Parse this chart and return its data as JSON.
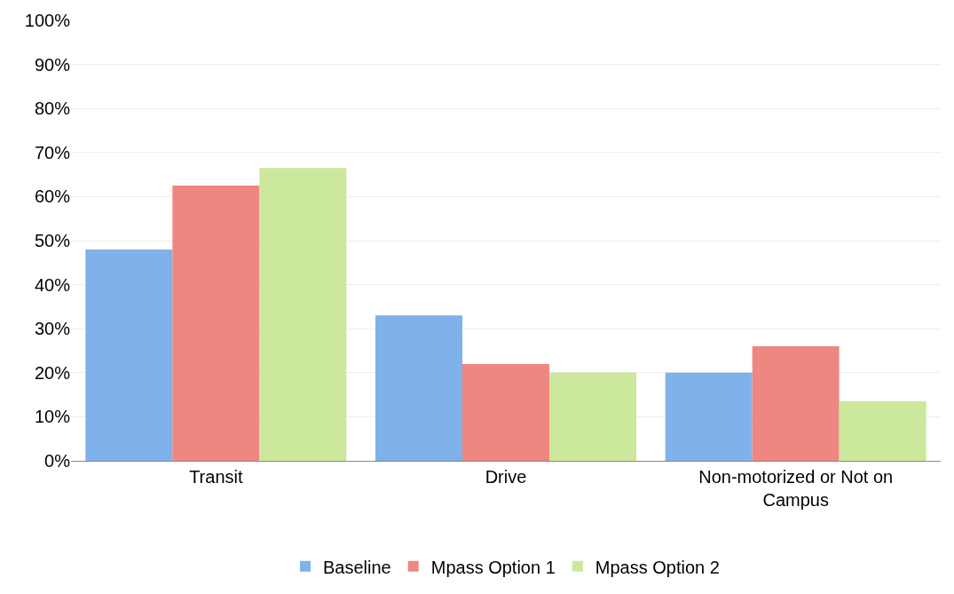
{
  "chart_data": {
    "type": "bar",
    "categories": [
      "Transit",
      "Drive",
      "Non-motorized or Not on Campus"
    ],
    "series": [
      {
        "name": "Baseline",
        "color": "#7fb1ea",
        "values": [
          48,
          33,
          20
        ]
      },
      {
        "name": "Mpass Option 1",
        "color": "#ee8781",
        "values": [
          62.5,
          22,
          26
        ]
      },
      {
        "name": "Mpass Option 2",
        "color": "#cbe89c",
        "values": [
          66.5,
          20,
          13.5
        ]
      }
    ],
    "ylim": [
      0,
      100
    ],
    "yticks": [
      {
        "value": 0,
        "label": "0%"
      },
      {
        "value": 10,
        "label": "10%"
      },
      {
        "value": 20,
        "label": "20%"
      },
      {
        "value": 30,
        "label": "30%"
      },
      {
        "value": 40,
        "label": "40%"
      },
      {
        "value": 50,
        "label": "50%"
      },
      {
        "value": 60,
        "label": "60%"
      },
      {
        "value": 70,
        "label": "70%"
      },
      {
        "value": 80,
        "label": "80%"
      },
      {
        "value": 90,
        "label": "90%"
      },
      {
        "value": 100,
        "label": "100%"
      }
    ],
    "grid": "y",
    "legend": "bottom"
  }
}
